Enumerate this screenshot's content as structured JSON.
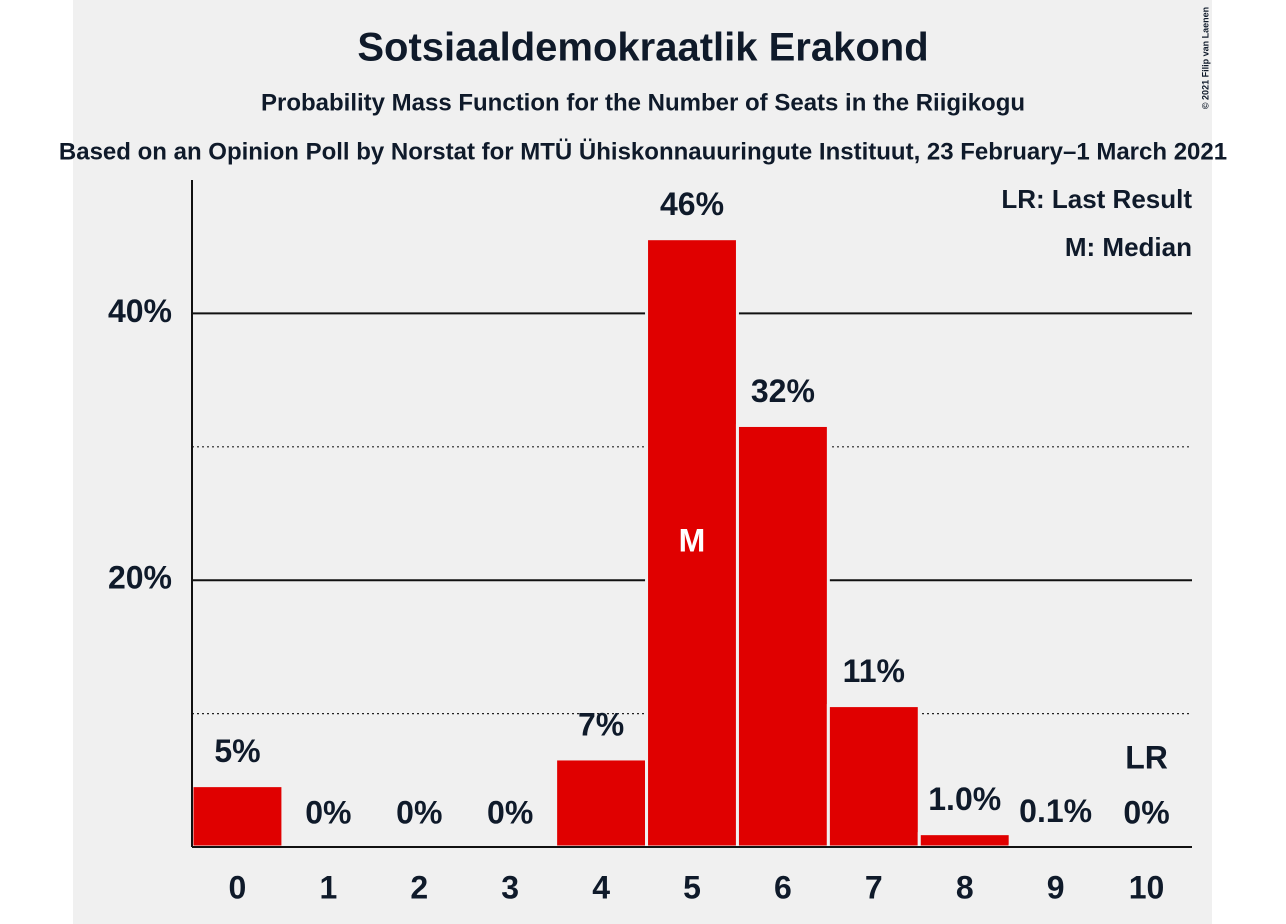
{
  "chart_data": {
    "type": "bar",
    "title": "Sotsiaaldemokraatlik Erakond",
    "subtitle": "Probability Mass Function for the Number of Seats in the Riigikogu",
    "source": "Based on an Opinion Poll by Norstat for MTÜ Ühiskonnauuringute Instituut, 23 February–1 March 2021",
    "copyright": "© 2021 Filip van Laenen",
    "categories": [
      "0",
      "1",
      "2",
      "3",
      "4",
      "5",
      "6",
      "7",
      "8",
      "9",
      "10"
    ],
    "values": [
      4.6,
      0,
      0,
      0,
      6.6,
      45.6,
      31.6,
      10.6,
      1.0,
      0.1,
      0
    ],
    "value_labels": [
      "5%",
      "0%",
      "0%",
      "0%",
      "7%",
      "46%",
      "32%",
      "11%",
      "1.0%",
      "0.1%",
      "0%"
    ],
    "color": "#e00000",
    "ylim": [
      0,
      50
    ],
    "yticks": [
      {
        "value": 20,
        "label": "20%"
      },
      {
        "value": 40,
        "label": "40%"
      }
    ],
    "minor_yticks": [
      10,
      30
    ],
    "median": {
      "category": "5",
      "label": "M"
    },
    "last_result": {
      "category": "10",
      "label": "LR"
    },
    "legend": [
      "LR: Last Result",
      "M: Median"
    ]
  }
}
